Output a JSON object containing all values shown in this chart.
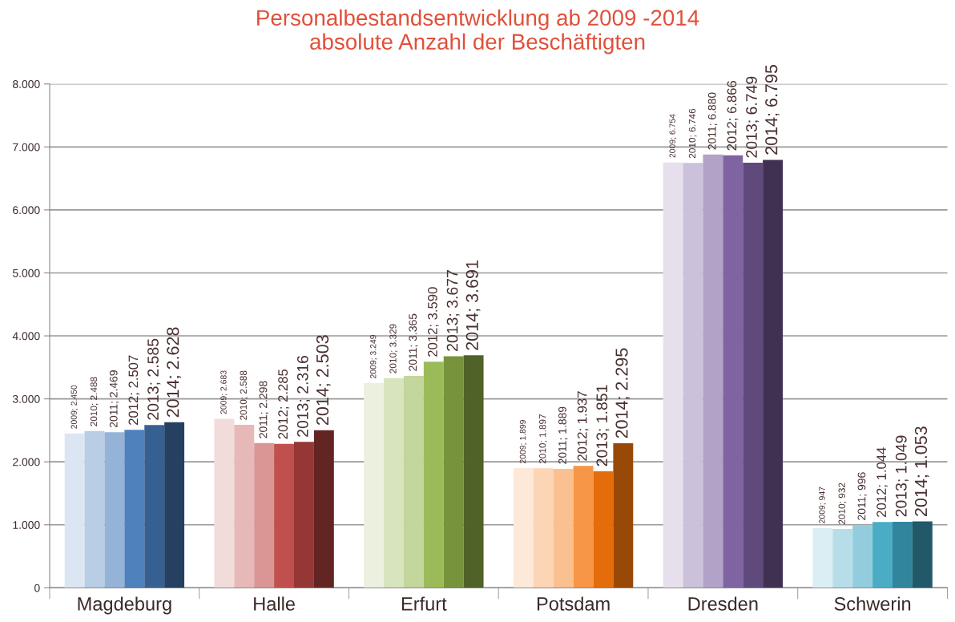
{
  "chart_data": {
    "type": "bar",
    "title": "Personalbestandsentwicklung ab 2009 -2014\nabsolute Anzahl der Beschäftigten",
    "categories": [
      "Magdeburg",
      "Halle",
      "Erfurt",
      "Potsdam",
      "Dresden",
      "Schwerin"
    ],
    "series": [
      {
        "colors": [
          "#dce6f2",
          "#f2dcdb",
          "#ebf1de",
          "#fde9d9",
          "#e6e0ec",
          "#dbeef4"
        ],
        "values": [
          2450,
          2683,
          3249,
          1899,
          6754,
          947
        ],
        "value_labels": [
          "2009; 2.450",
          "2009; 2.683",
          "2009; 3.249",
          "2009; 1.899",
          "2009; 6.754",
          "2009; 947"
        ]
      },
      {
        "colors": [
          "#b9cde5",
          "#e6b9b8",
          "#d7e4bd",
          "#fcd5b5",
          "#ccc1da",
          "#b7dee8"
        ],
        "values": [
          2488,
          2588,
          3329,
          1897,
          6746,
          932
        ],
        "value_labels": [
          "2010; 2.488",
          "2010; 2.588",
          "2010; 3.329",
          "2010; 1.897",
          "2010; 6.746",
          "2010; 932"
        ]
      },
      {
        "colors": [
          "#95b3d7",
          "#d99694",
          "#c3d69b",
          "#fac090",
          "#b3a2c7",
          "#93cddd"
        ],
        "values": [
          2469,
          2298,
          3365,
          1889,
          6880,
          996
        ],
        "value_labels": [
          "2011; 2.469",
          "2011; 2.298",
          "2011; 3.365",
          "2011; 1.889",
          "2011; 6.880",
          "2011; 996"
        ]
      },
      {
        "colors": [
          "#4f81bd",
          "#c0504d",
          "#9bbb59",
          "#f79646",
          "#8064a2",
          "#4bacc6"
        ],
        "values": [
          2507,
          2285,
          3590,
          1937,
          6866,
          1044
        ],
        "value_labels": [
          "2012; 2.507",
          "2012; 2.285",
          "2012; 3.590",
          "2012; 1.937",
          "2012; 6.866",
          "2012; 1.044"
        ]
      },
      {
        "colors": [
          "#376092",
          "#953735",
          "#77933c",
          "#e46c0a",
          "#604a7b",
          "#31859c"
        ],
        "values": [
          2585,
          2316,
          3677,
          1851,
          6749,
          1049
        ],
        "value_labels": [
          "2013; 2.585",
          "2013; 2.316",
          "2013; 3.677",
          "2013; 1.851",
          "2013; 6.749",
          "2013; 1.049"
        ]
      },
      {
        "colors": [
          "#254061",
          "#632523",
          "#4f6228",
          "#984807",
          "#403152",
          "#215968"
        ],
        "values": [
          2628,
          2503,
          3691,
          2295,
          6795,
          1053
        ],
        "value_labels": [
          "2014; 2.628",
          "2014; 2.503",
          "2014; 3.691",
          "2014; 2.295",
          "2014; 6.795",
          "2014; 1.053"
        ]
      }
    ],
    "ylim": [
      0,
      8000
    ],
    "yticks": [
      {
        "value": 0,
        "label": "0"
      },
      {
        "value": 1000,
        "label": "1.000"
      },
      {
        "value": 2000,
        "label": "2.000"
      },
      {
        "value": 3000,
        "label": "3.000"
      },
      {
        "value": 4000,
        "label": "4.000"
      },
      {
        "value": 5000,
        "label": "5.000"
      },
      {
        "value": 6000,
        "label": "6.000"
      },
      {
        "value": 7000,
        "label": "7.000"
      },
      {
        "value": 8000,
        "label": "8.000"
      }
    ],
    "grid": "y",
    "legend": false
  }
}
